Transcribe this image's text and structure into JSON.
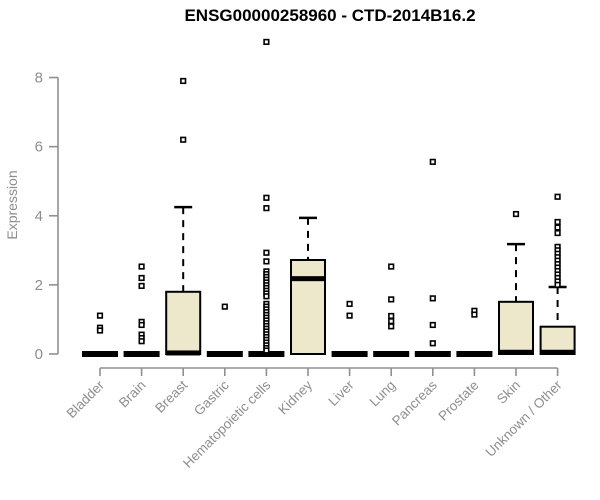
{
  "chart_data": {
    "type": "boxplot",
    "title": "ENSG00000258960 - CTD-2014B16.2",
    "ylabel": "Expression",
    "xlabel": "",
    "ylim": [
      0,
      9.2
    ],
    "yticks": [
      0,
      2,
      4,
      6,
      8
    ],
    "grid": false,
    "legend": "none",
    "colors": {
      "box_fill": "#ede7cb",
      "box_stroke": "#000000",
      "axis": "#909090",
      "tick_label": "#8e8e8e",
      "title": "#000000"
    },
    "categories": [
      "Bladder",
      "Brain",
      "Breast",
      "Gastric",
      "Hematopoietic cells",
      "Kidney",
      "Liver",
      "Lung",
      "Pancreas",
      "Prostate",
      "Skin",
      "Unknown / Other"
    ],
    "series": [
      {
        "category": "Bladder",
        "q1": 0,
        "median": 0,
        "q3": 0,
        "whisker_low": 0,
        "whisker_high": 0,
        "outliers": [
          1.11,
          0.76,
          0.68
        ]
      },
      {
        "category": "Brain",
        "q1": 0,
        "median": 0,
        "q3": 0,
        "whisker_low": 0,
        "whisker_high": 0,
        "outliers": [
          2.53,
          2.2,
          1.97,
          0.93,
          0.84,
          0.56,
          0.46,
          0.37
        ]
      },
      {
        "category": "Breast",
        "q1": 0,
        "median": 0.03,
        "q3": 1.8,
        "whisker_low": 0,
        "whisker_high": 4.25,
        "outliers": [
          7.9,
          6.2
        ]
      },
      {
        "category": "Gastric",
        "q1": 0,
        "median": 0,
        "q3": 0,
        "whisker_low": 0,
        "whisker_high": 0,
        "outliers": [
          1.37
        ]
      },
      {
        "category": "Hematopoietic cells",
        "q1": 0,
        "median": 0,
        "q3": 0,
        "whisker_low": 0,
        "whisker_high": 0,
        "outliers": [
          9.03,
          4.52,
          4.22,
          2.93,
          2.68,
          2.39,
          2.31,
          2.23,
          2.15,
          2.07,
          1.99,
          1.91,
          1.83,
          1.75,
          1.67,
          1.45,
          1.37,
          1.29,
          1.21,
          1.13,
          1.05,
          0.97,
          0.89,
          0.81,
          0.73,
          0.65,
          0.57,
          0.49,
          0.41,
          0.33,
          0.25,
          0.17,
          0.1
        ]
      },
      {
        "category": "Kidney",
        "q1": 0,
        "median": 2.18,
        "q3": 2.72,
        "whisker_low": 0,
        "whisker_high": 3.94,
        "outliers": []
      },
      {
        "category": "Liver",
        "q1": 0,
        "median": 0,
        "q3": 0,
        "whisker_low": 0,
        "whisker_high": 0,
        "outliers": [
          1.45,
          1.11
        ]
      },
      {
        "category": "Lung",
        "q1": 0,
        "median": 0,
        "q3": 0,
        "whisker_low": 0,
        "whisker_high": 0,
        "outliers": [
          2.53,
          1.58,
          1.1,
          0.95,
          0.8
        ]
      },
      {
        "category": "Pancreas",
        "q1": 0,
        "median": 0,
        "q3": 0,
        "whisker_low": 0,
        "whisker_high": 0,
        "outliers": [
          5.56,
          1.61,
          0.84,
          0.31
        ]
      },
      {
        "category": "Prostate",
        "q1": 0,
        "median": 0,
        "q3": 0,
        "whisker_low": 0,
        "whisker_high": 0,
        "outliers": [
          1.25,
          1.14
        ]
      },
      {
        "category": "Skin",
        "q1": 0,
        "median": 0.05,
        "q3": 1.51,
        "whisker_low": 0,
        "whisker_high": 3.18,
        "outliers": [
          4.05
        ]
      },
      {
        "category": "Unknown / Other",
        "q1": 0,
        "median": 0.05,
        "q3": 0.79,
        "whisker_low": 0,
        "whisker_high": 1.94,
        "outliers": [
          4.55,
          3.82,
          3.66,
          3.5,
          3.1,
          3.0,
          2.9,
          2.8,
          2.7,
          2.6,
          2.5,
          2.4,
          2.3,
          2.2,
          2.1,
          2.0
        ]
      }
    ]
  }
}
